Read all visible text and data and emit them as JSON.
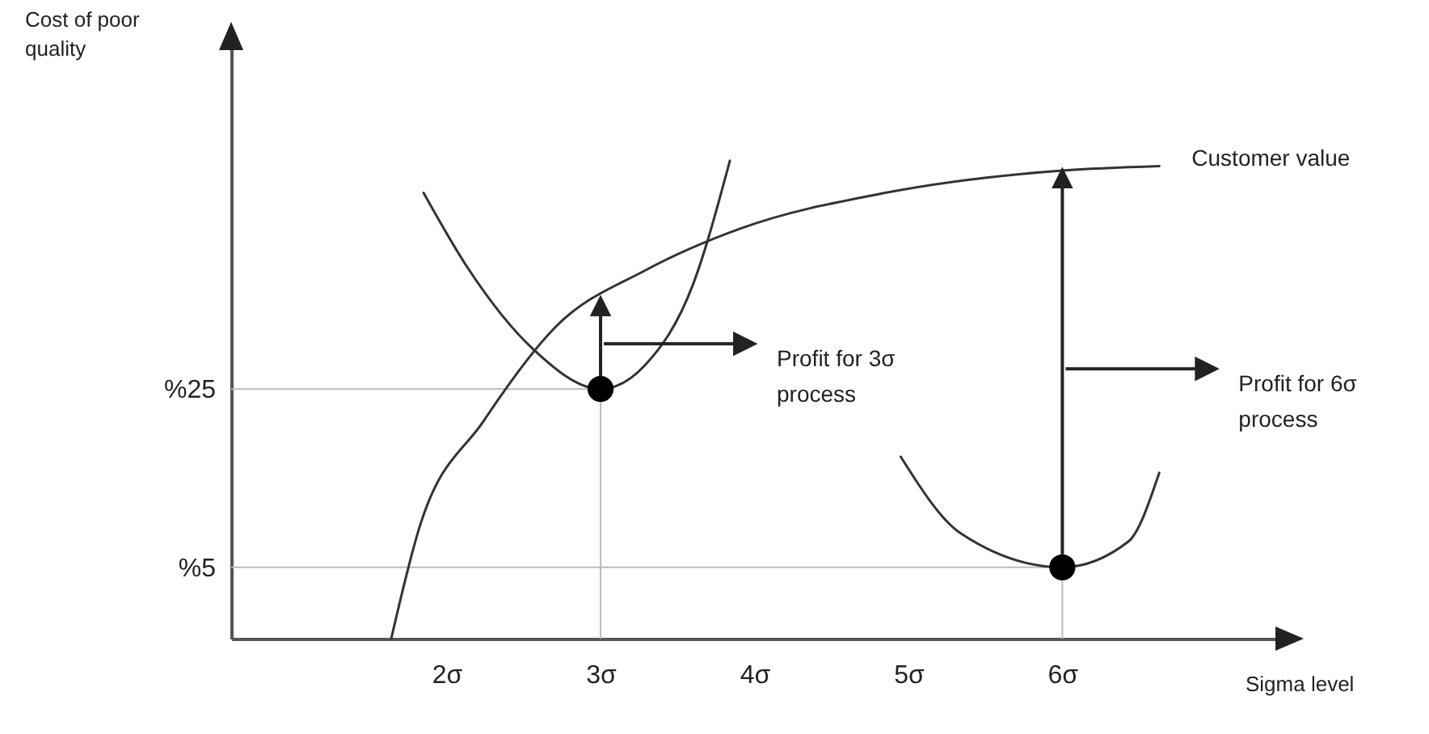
{
  "chart_data": {
    "type": "line",
    "xlabel": "Sigma level",
    "ylabel": "Cost of poor quality",
    "xlim": [
      0.6,
      7.5
    ],
    "ylim": [
      -3,
      65
    ],
    "xticks": [
      {
        "value": 2,
        "label": "2σ"
      },
      {
        "value": 3,
        "label": "3σ"
      },
      {
        "value": 4,
        "label": "4σ"
      },
      {
        "value": 5,
        "label": "5σ"
      },
      {
        "value": 6,
        "label": "6σ"
      }
    ],
    "yticks": [
      {
        "value": 5,
        "label": "%5"
      },
      {
        "value": 25,
        "label": "%25"
      }
    ],
    "grid": false,
    "series": [
      {
        "name": "Customer value",
        "color": "#333333",
        "x": [
          1.64,
          1.82,
          2.24,
          2.71,
          3.29,
          3.91,
          4.85,
          6.0,
          6.63
        ],
        "values": [
          -3,
          9.3,
          21.4,
          32,
          38.3,
          43,
          47,
          49.5,
          50
        ]
      },
      {
        "color": "#333333",
        "x": [
          1.85,
          2.14,
          2.56,
          3.0,
          3.29,
          3.6,
          3.84
        ],
        "values": [
          47,
          38.5,
          29.5,
          25,
          27.7,
          36.7,
          50.6
        ]
      },
      {
        "color": "#333333",
        "x": [
          4.95,
          5.34,
          6.0,
          6.43,
          6.63
        ],
        "values": [
          17.4,
          8.8,
          5,
          7.9,
          15.6
        ]
      },
      {
        "type": "scatter",
        "color": "#000000",
        "x": [
          3,
          6
        ],
        "values": [
          25,
          5
        ]
      }
    ],
    "ref_lines": [
      {
        "axis": "y",
        "value": 25,
        "color": "#bbbbbb"
      },
      {
        "axis": "y",
        "value": 5,
        "color": "#bbbbbb"
      },
      {
        "axis": "x",
        "value": 3,
        "color": "#bbbbbb"
      },
      {
        "axis": "x",
        "value": 6,
        "color": "#bbbbbb"
      }
    ],
    "annotations": [
      "Profit for 3σ process",
      "Profit for 6σ process"
    ]
  }
}
